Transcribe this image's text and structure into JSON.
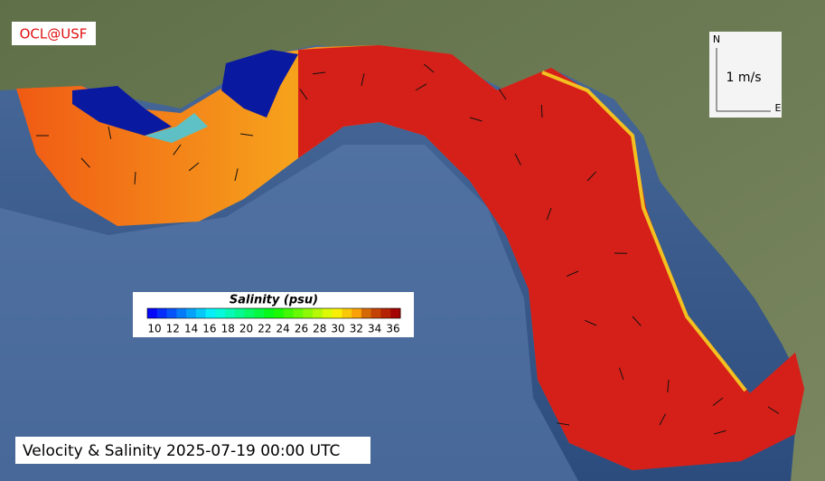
{
  "logo": "OCL@USF",
  "scale": {
    "label": "1 m/s",
    "north": "N",
    "east": "E"
  },
  "colorbar": {
    "title": "Salinity (psu)",
    "ticks": [
      10,
      12,
      14,
      16,
      18,
      20,
      22,
      24,
      26,
      28,
      30,
      32,
      34,
      36
    ]
  },
  "caption": "Velocity & Salinity 2025-07-19 00:00 UTC"
}
